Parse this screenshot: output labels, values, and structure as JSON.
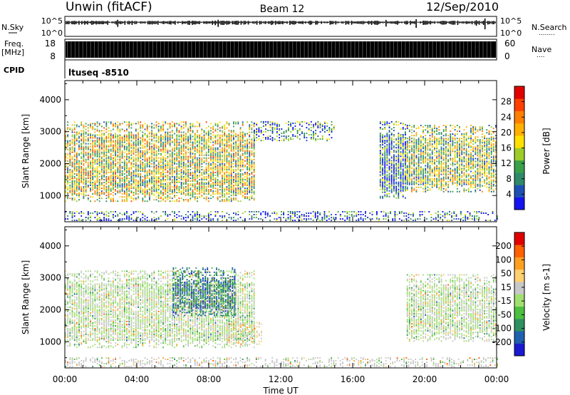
{
  "header": {
    "station": "Unwin (fitACF)",
    "beam": "Beam 12",
    "date": "12/Sep/2010"
  },
  "status_panels": {
    "nsky": {
      "label": "N.Sky",
      "ticks": [
        "10^5",
        "10^0"
      ],
      "right_ticks": [
        "10^5",
        "10^0"
      ],
      "right_label": "N.Search",
      "right_marker": "........"
    },
    "freq": {
      "label_lines": [
        "Freq.",
        "[MHz]"
      ],
      "ticks": [
        "18",
        "8"
      ],
      "right_ticks": [
        "60",
        "0"
      ],
      "right_label": "Nave",
      "right_marker": "...."
    },
    "cpid": {
      "label": "CPID",
      "value": "ltuseq -8510"
    }
  },
  "chart_data": [
    {
      "type": "heatmap",
      "name": "power",
      "ylabel": "Slant Range [km]",
      "xlabel": "",
      "xlim": [
        "00:00",
        "24:00"
      ],
      "ylim": [
        180,
        4600
      ],
      "yticks": [
        1000,
        2000,
        3000,
        4000
      ],
      "colorbar": {
        "label": "Power [dB]",
        "min": 0,
        "max": 32,
        "ticks": [
          4,
          8,
          12,
          16,
          20,
          24,
          28
        ],
        "colors": [
          "#1414f0",
          "#1e50b4",
          "#2f8a6a",
          "#3aa04a",
          "#9ccc2a",
          "#ffe000",
          "#ffb000",
          "#ff8000",
          "#ff4000",
          "#e00000"
        ]
      },
      "regions": [
        {
          "x": [
            0.0,
            10.5
          ],
          "range_km": [
            800,
            3300
          ],
          "mean_db": 16
        },
        {
          "x": [
            10.5,
            15.0
          ],
          "range_km": [
            2700,
            3300
          ],
          "mean_db": 8
        },
        {
          "x": [
            17.5,
            19.0
          ],
          "range_km": [
            900,
            3300
          ],
          "mean_db": 8
        },
        {
          "x": [
            19.0,
            24.0
          ],
          "range_km": [
            1100,
            3200
          ],
          "mean_db": 14
        },
        {
          "x": [
            0.0,
            24.0
          ],
          "range_km": [
            200,
            500
          ],
          "mean_db": 6
        }
      ]
    },
    {
      "type": "heatmap",
      "name": "velocity",
      "ylabel": "Slant Range [km]",
      "xlabel": "Time UT",
      "xlim": [
        "00:00",
        "24:00"
      ],
      "ylim": [
        180,
        4600
      ],
      "yticks": [
        1000,
        2000,
        3000,
        4000
      ],
      "xticks": [
        "00:00",
        "04:00",
        "08:00",
        "12:00",
        "16:00",
        "20:00",
        "00:00"
      ],
      "colorbar": {
        "label": "Velocity [m s-1]",
        "min": -250,
        "max": 250,
        "ticks": [
          200,
          100,
          50,
          15,
          -15,
          -50,
          -100,
          -200
        ],
        "colors": [
          "#1a1ad0",
          "#2060b0",
          "#2f9060",
          "#4cc040",
          "#a0e070",
          "#c8c8c8",
          "#ffd070",
          "#ffa020",
          "#ff6000",
          "#e00000"
        ]
      },
      "regions": [
        {
          "x": [
            0.0,
            10.5
          ],
          "range_km": [
            800,
            3200
          ],
          "mean_velocity": 0
        },
        {
          "x": [
            6.0,
            9.5
          ],
          "range_km": [
            1800,
            3300
          ],
          "mean_velocity": -150
        },
        {
          "x": [
            9.0,
            11.0
          ],
          "range_km": [
            900,
            1600
          ],
          "mean_velocity": 50
        },
        {
          "x": [
            19.0,
            24.0
          ],
          "range_km": [
            1000,
            3100
          ],
          "mean_velocity": 0
        },
        {
          "x": [
            0.0,
            24.0
          ],
          "range_km": [
            200,
            500
          ],
          "mean_velocity": 30
        }
      ]
    }
  ]
}
